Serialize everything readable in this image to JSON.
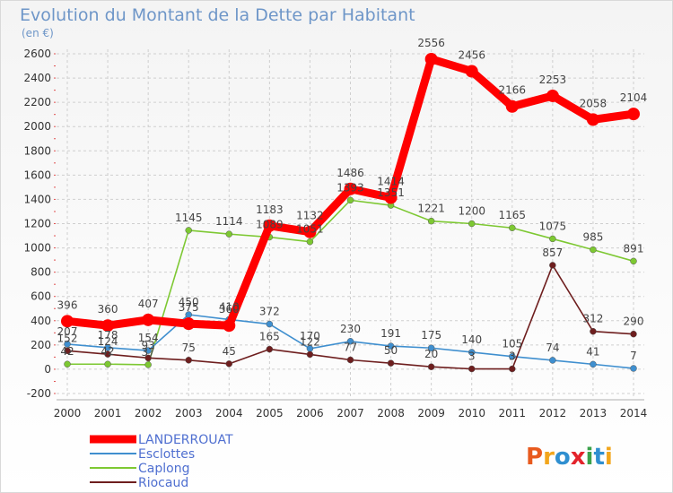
{
  "chart_data": {
    "type": "line",
    "title": "Evolution du Montant de la Dette par Habitant",
    "subtitle": "(en €)",
    "x": [
      "2000",
      "2001",
      "2002",
      "2003",
      "2004",
      "2005",
      "2006",
      "2007",
      "2008",
      "2009",
      "2010",
      "2011",
      "2012",
      "2013",
      "2014"
    ],
    "ylim": [
      -200,
      2600
    ],
    "yticks": [
      -200,
      0,
      200,
      400,
      600,
      800,
      1000,
      1200,
      1400,
      1600,
      1800,
      2000,
      2200,
      2400,
      2600
    ],
    "grid": true,
    "legend_position": "bottom-left",
    "series": [
      {
        "name": "LANDERROUAT",
        "color": "#ff0000",
        "values": [
          396,
          360,
          407,
          375,
          360,
          1183,
          1132,
          1486,
          1414,
          2556,
          2456,
          2166,
          2253,
          2058,
          2104
        ],
        "labels": [
          "396",
          "360",
          "407",
          "375",
          "360",
          "1183",
          "1132",
          "1486",
          "1414",
          "2556",
          "2456",
          "2166",
          "2253",
          "2058",
          "2104"
        ]
      },
      {
        "name": "Esclottes",
        "color": "#3f8fcf",
        "values": [
          207,
          178,
          154,
          450,
          410,
          372,
          170,
          230,
          191,
          175,
          140,
          105,
          74,
          41,
          7
        ],
        "labels": [
          "207",
          "178",
          "154",
          "450",
          "410",
          "372",
          "170",
          "230",
          "191",
          "175",
          "140",
          "105",
          "74",
          "41",
          "7"
        ]
      },
      {
        "name": "Caplong",
        "color": "#7dc832",
        "values": [
          42,
          42,
          37,
          1145,
          1114,
          1089,
          1051,
          1393,
          1351,
          1221,
          1200,
          1165,
          1075,
          985,
          891
        ],
        "labels": [
          "42",
          "42",
          "37",
          "1145",
          "1114",
          "1089",
          "1051",
          "1393",
          "1351",
          "1221",
          "1200",
          "1165",
          "1075",
          "985",
          "891"
        ]
      },
      {
        "name": "Riocaud",
        "color": "#6e1e1e",
        "values": [
          152,
          124,
          93,
          75,
          45,
          165,
          122,
          77,
          50,
          20,
          3,
          3,
          857,
          312,
          290
        ],
        "labels": [
          "152",
          "124",
          "93",
          "75",
          "45",
          "165",
          "122",
          "77",
          "50",
          "20",
          "3",
          "3",
          "857",
          "312",
          "290"
        ]
      }
    ]
  },
  "brand": {
    "letters": [
      "P",
      "r",
      "o",
      "x",
      "i",
      "t",
      "i"
    ],
    "colors": [
      "#e85a1e",
      "#f2a61c",
      "#2f8fd0",
      "#e3232b",
      "#3aa14a",
      "#2f8fd0",
      "#f2a61c"
    ]
  }
}
